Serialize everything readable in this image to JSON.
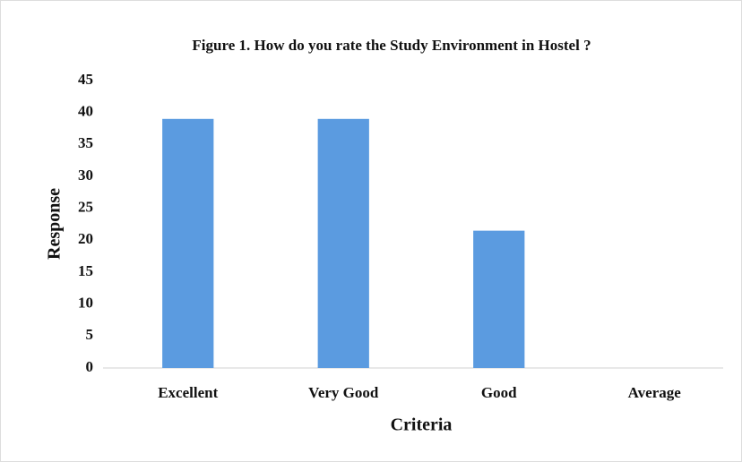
{
  "chart_data": {
    "type": "bar",
    "title": "Figure 1. How do you rate the Study Environment in Hostel ?",
    "x_label": "Criteria",
    "y_label": "Response",
    "categories": [
      "Excellent",
      "Very Good",
      "Good",
      "Average"
    ],
    "values": [
      39,
      39,
      21.5,
      0
    ],
    "color": "#5b9be0",
    "ylim": [
      0,
      45
    ],
    "yticks": [
      0,
      5,
      10,
      15,
      20,
      25,
      30,
      35,
      40,
      45
    ],
    "grid": false
  }
}
